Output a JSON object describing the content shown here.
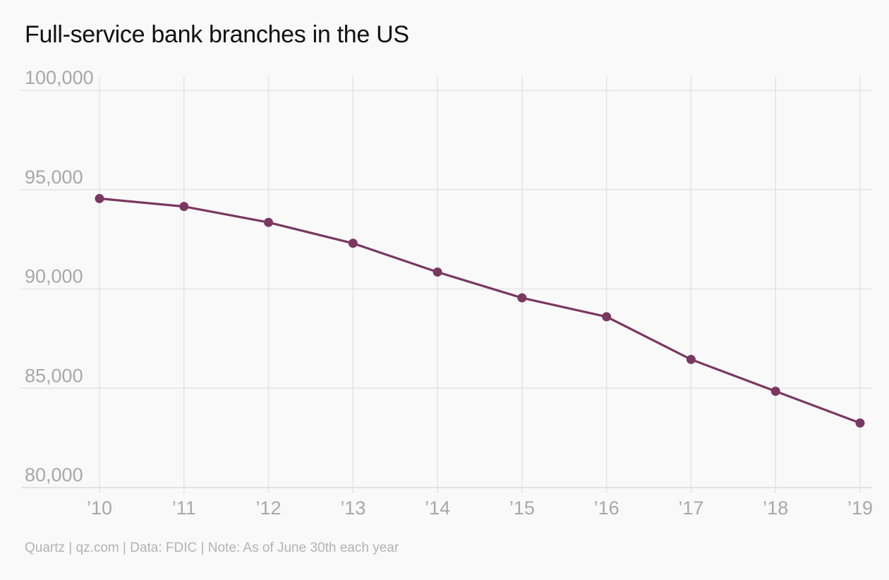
{
  "header": {
    "title": "Full-service bank branches in the US"
  },
  "footer": {
    "source": "Quartz | qz.com | Data: FDIC | Note: As of June 30th each year"
  },
  "colors": {
    "series": "#7a3860",
    "background": "#f9f9f9",
    "grid": "#e4e4e4",
    "tick_text": "#a8a8a8"
  },
  "chart_data": {
    "type": "line",
    "title": "Full-service bank branches in the US",
    "xlabel": "",
    "ylabel": "",
    "x": [
      "’10",
      "’11",
      "’12",
      "’13",
      "’14",
      "’15",
      "’16",
      "’17",
      "’18",
      "’19"
    ],
    "yticks": [
      "80,000",
      "85,000",
      "90,000",
      "95,000",
      "100,000"
    ],
    "ytick_values": [
      80000,
      85000,
      90000,
      95000,
      100000
    ],
    "ylim": [
      80000,
      100000
    ],
    "grid": true,
    "markers": true,
    "legend": "none",
    "series": [
      {
        "values": [
          94550,
          94150,
          93350,
          92300,
          90850,
          89550,
          88600,
          86450,
          84850,
          83250
        ]
      }
    ]
  }
}
